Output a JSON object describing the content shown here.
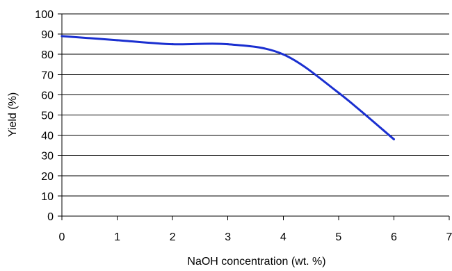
{
  "chart_data": {
    "type": "line",
    "title": "",
    "xlabel": "NaOH concentration (wt. %)",
    "ylabel": "Yield (%)",
    "xlim": [
      0,
      7
    ],
    "ylim": [
      0,
      100
    ],
    "x_ticks": [
      "0",
      "1",
      "2",
      "3",
      "4",
      "5",
      "6",
      "7"
    ],
    "y_ticks": [
      "0",
      "10",
      "20",
      "30",
      "40",
      "50",
      "60",
      "70",
      "80",
      "90",
      "100"
    ],
    "grid": "horizontal",
    "legend": "none",
    "smooth": true,
    "series": [
      {
        "color": "#1a2fd0",
        "x": [
          0,
          1,
          2,
          3,
          4,
          5,
          6
        ],
        "y": [
          89,
          87,
          85,
          85,
          80,
          61,
          38
        ]
      }
    ]
  }
}
